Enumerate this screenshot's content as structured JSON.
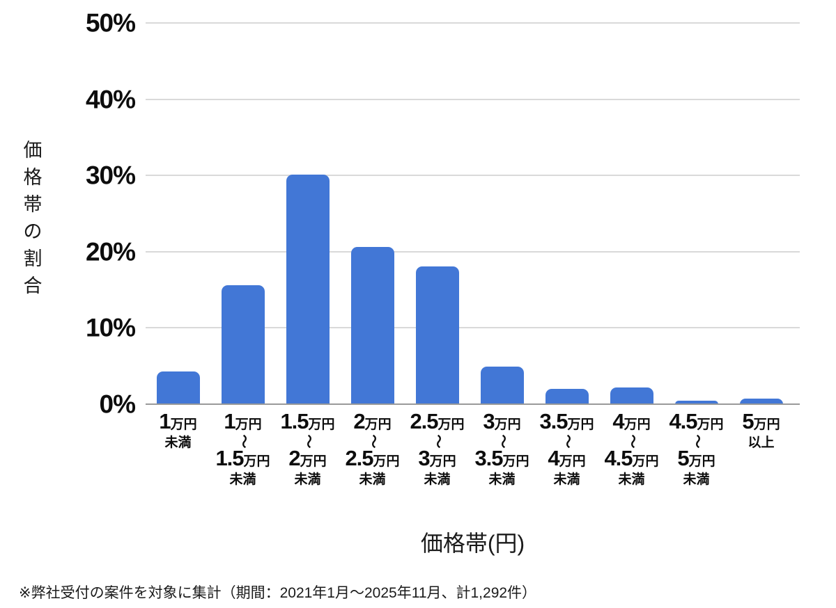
{
  "colors": {
    "bar": "#4277d6",
    "gridline": "#d9d9d9",
    "baseline": "#999999",
    "text": "#0d0d0d"
  },
  "y_axis": {
    "title": "価格帯の割合",
    "title_vertical": "価\n格\n帯\nの\n割\n合"
  },
  "x_axis": {
    "title": "価格帯(円)"
  },
  "footnote": "※弊社受付の案件を対象に集計（期間：2021年1月〜2025年11月、計1,292件）",
  "chart_data": {
    "type": "bar",
    "title": "",
    "xlabel": "価格帯(円)",
    "ylabel": "価格帯の割合",
    "ylim": [
      0,
      50
    ],
    "grid": true,
    "legend": false,
    "bar_color": "#4277d6",
    "yticks": [
      {
        "value": 0,
        "label": "0%"
      },
      {
        "value": 10,
        "label": "10%"
      },
      {
        "value": 20,
        "label": "20%"
      },
      {
        "value": 30,
        "label": "30%"
      },
      {
        "value": 40,
        "label": "40%"
      },
      {
        "value": 50,
        "label": "50%"
      }
    ],
    "categories": [
      "1万円未満",
      "1万円〜1.5万円未満",
      "1.5万円〜2万円未満",
      "2万円〜2.5万円未満",
      "2.5万円〜3万円未満",
      "3万円〜3.5万円未満",
      "3.5万円〜4万円未満",
      "4万円〜4.5万円未満",
      "4.5万円〜5万円未満",
      "5万円以上"
    ],
    "values": [
      4.3,
      15.6,
      30.1,
      20.6,
      18.1,
      4.9,
      2.0,
      2.2,
      0.5,
      0.7
    ],
    "category_parts": [
      {
        "n1": "1",
        "u1": "万円",
        "wave": "",
        "n2": "",
        "u2": "",
        "note": "未満"
      },
      {
        "n1": "1",
        "u1": "万円",
        "wave": "〜",
        "n2": "1.5",
        "u2": "万円",
        "note": "未満"
      },
      {
        "n1": "1.5",
        "u1": "万円",
        "wave": "〜",
        "n2": "2",
        "u2": "万円",
        "note": "未満"
      },
      {
        "n1": "2",
        "u1": "万円",
        "wave": "〜",
        "n2": "2.5",
        "u2": "万円",
        "note": "未満"
      },
      {
        "n1": "2.5",
        "u1": "万円",
        "wave": "〜",
        "n2": "3",
        "u2": "万円",
        "note": "未満"
      },
      {
        "n1": "3",
        "u1": "万円",
        "wave": "〜",
        "n2": "3.5",
        "u2": "万円",
        "note": "未満"
      },
      {
        "n1": "3.5",
        "u1": "万円",
        "wave": "〜",
        "n2": "4",
        "u2": "万円",
        "note": "未満"
      },
      {
        "n1": "4",
        "u1": "万円",
        "wave": "〜",
        "n2": "4.5",
        "u2": "万円",
        "note": "未満"
      },
      {
        "n1": "4.5",
        "u1": "万円",
        "wave": "〜",
        "n2": "5",
        "u2": "万円",
        "note": "未満"
      },
      {
        "n1": "5",
        "u1": "万円",
        "wave": "",
        "n2": "",
        "u2": "",
        "note": "以上"
      }
    ]
  }
}
